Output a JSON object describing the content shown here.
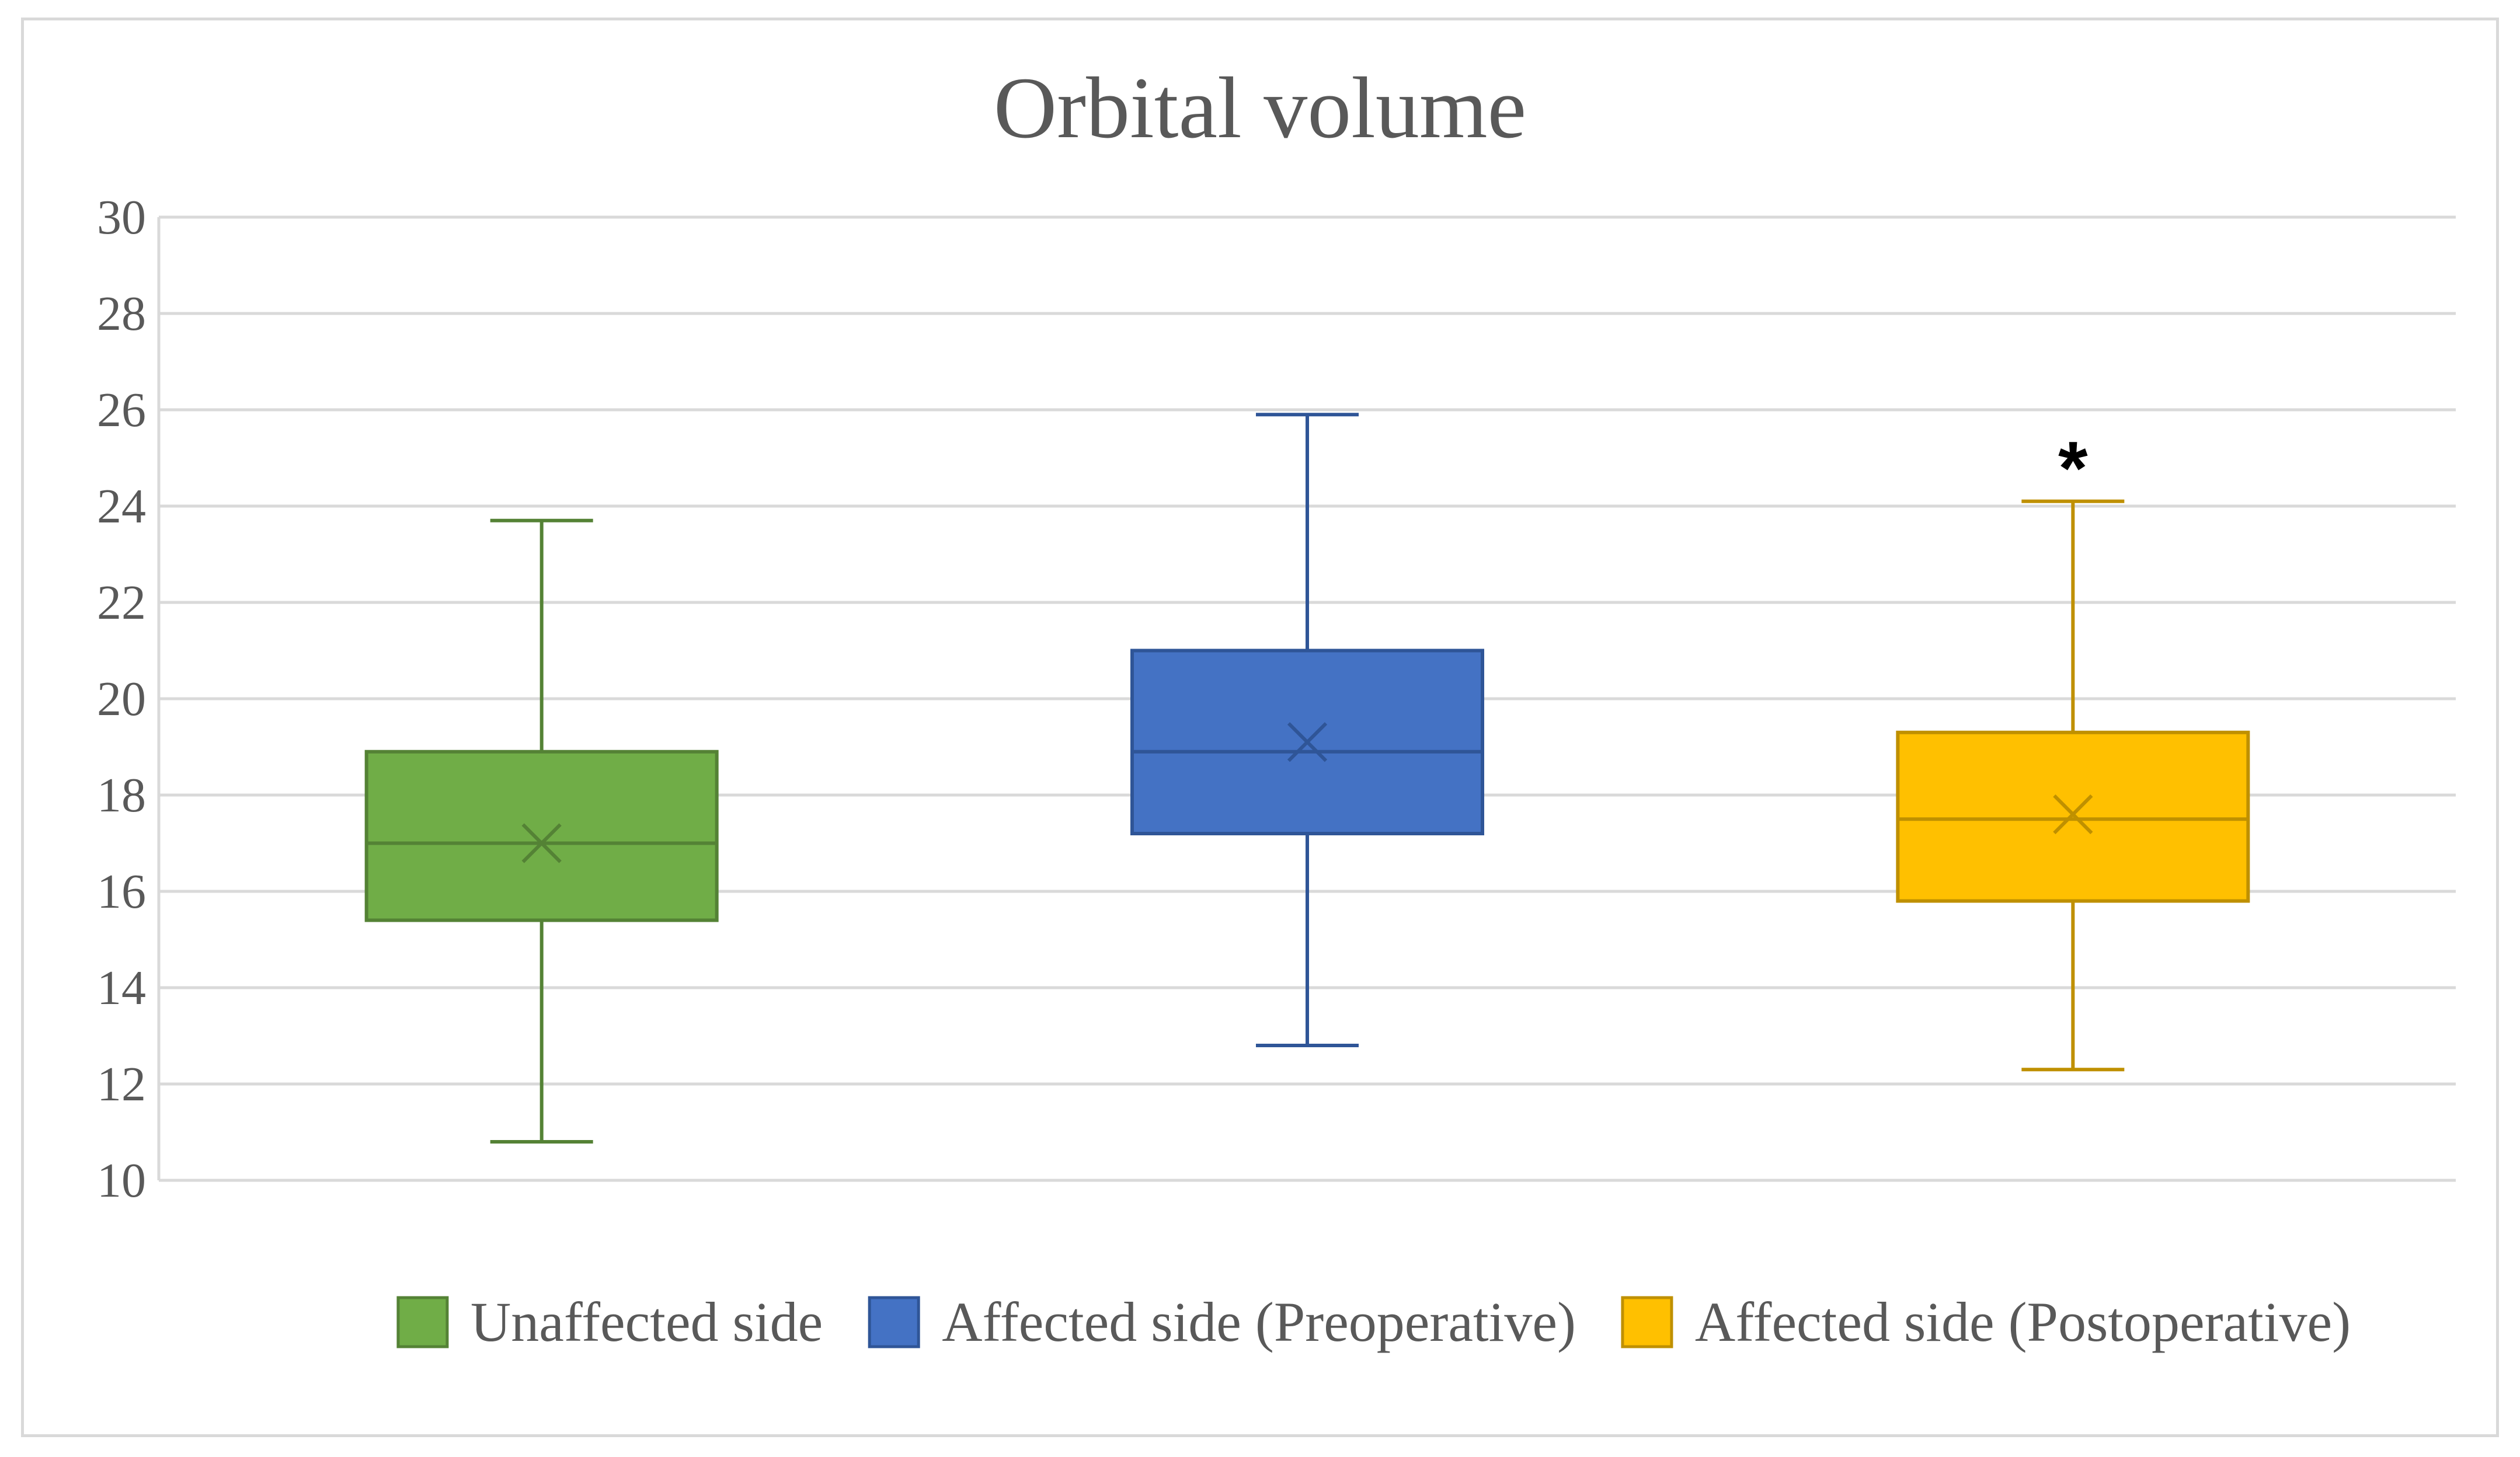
{
  "chart_data": {
    "type": "box",
    "title": "Orbital volume",
    "xlabel": "",
    "ylabel": "",
    "ylim": [
      10,
      30
    ],
    "yticks": [
      10,
      12,
      14,
      16,
      18,
      20,
      22,
      24,
      26,
      28,
      30
    ],
    "grid": true,
    "legend_position": "bottom",
    "series": [
      {
        "name": "Unaffected side",
        "color": "#70AD47",
        "border_color": "#548235",
        "min": 10.8,
        "q1": 15.4,
        "median": 17.0,
        "mean": 17.0,
        "q3": 18.9,
        "max": 23.7,
        "annotation": ""
      },
      {
        "name": "Affected side (Preoperative)",
        "color": "#4472C4",
        "border_color": "#2F5597",
        "min": 12.8,
        "q1": 17.2,
        "median": 18.9,
        "mean": 19.1,
        "q3": 21.0,
        "max": 25.9,
        "annotation": ""
      },
      {
        "name": "Affected side (Postoperative)",
        "color": "#FFC000",
        "border_color": "#BF9000",
        "min": 12.3,
        "q1": 15.8,
        "median": 17.5,
        "mean": 17.6,
        "q3": 19.3,
        "max": 24.1,
        "annotation": "*"
      }
    ]
  }
}
